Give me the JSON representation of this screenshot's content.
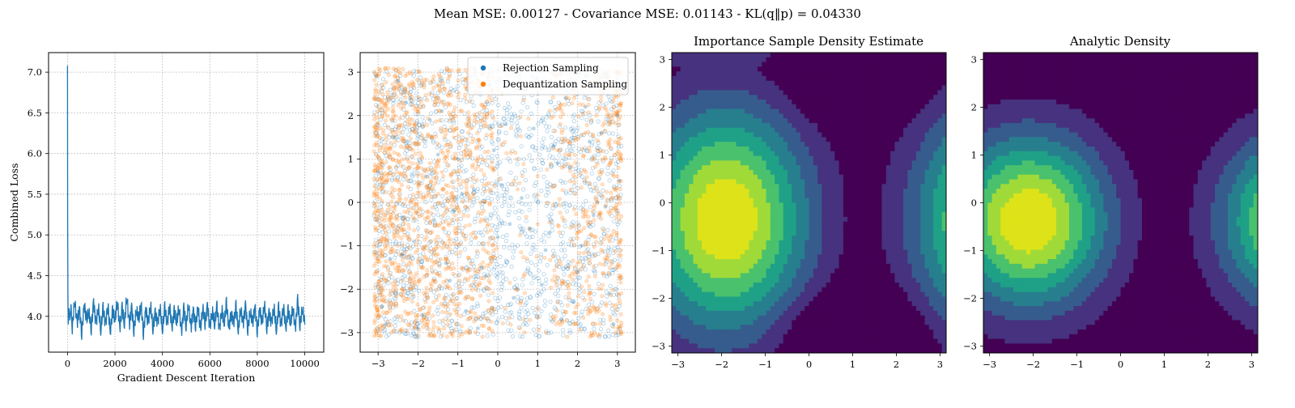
{
  "suptitle": "Mean MSE: 0.00127 - Covariance MSE: 0.01143 - KL(q‖p) = 0.04330",
  "chart_data": [
    {
      "type": "line",
      "title": "",
      "xlabel": "Gradient Descent Iteration",
      "ylabel": "Combined Loss",
      "xlim": [
        -800,
        10800
      ],
      "ylim": [
        3.56,
        7.24
      ],
      "xticks": [
        0,
        2000,
        4000,
        6000,
        8000,
        10000
      ],
      "xtick_labels": [
        "0",
        "2000",
        "4000",
        "6000",
        "8000",
        "10000"
      ],
      "yticks": [
        4.0,
        4.5,
        5.0,
        5.5,
        6.0,
        6.5,
        7.0
      ],
      "ytick_labels": [
        "4.0",
        "4.5",
        "5.0",
        "5.5",
        "6.0",
        "6.5",
        "7.0"
      ],
      "grid": true,
      "color": "#1f77b4",
      "series": [
        {
          "x": [
            0,
            5,
            15,
            30,
            60,
            100,
            150,
            200,
            300,
            400,
            500,
            600,
            700,
            800,
            900,
            1000,
            1100,
            1200,
            1300,
            1400,
            1500,
            1600,
            1700,
            1800,
            1900,
            2000,
            2100,
            2200,
            2300,
            2400,
            2500,
            2600,
            2700,
            2800,
            2900,
            3000,
            3100,
            3200,
            3300,
            3400,
            3500,
            3600,
            3700,
            3800,
            3900,
            4000,
            4100,
            4200,
            4300,
            4400,
            4500,
            4600,
            4700,
            4800,
            4900,
            5000,
            5100,
            5200,
            5300,
            5400,
            5500,
            5600,
            5700,
            5800,
            5900,
            6000,
            6100,
            6200,
            6300,
            6400,
            6500,
            6600,
            6700,
            6800,
            6900,
            7000,
            7100,
            7200,
            7300,
            7400,
            7500,
            7600,
            7700,
            7800,
            7900,
            8000,
            8100,
            8200,
            8300,
            8400,
            8500,
            8600,
            8700,
            8800,
            8900,
            9000,
            9100,
            9200,
            9300,
            9400,
            9500,
            9600,
            9700,
            9800,
            9900,
            10000
          ],
          "y": [
            7.08,
            5.2,
            4.3,
            3.9,
            4.1,
            3.95,
            4.15,
            3.85,
            4.2,
            3.9,
            4.1,
            3.8,
            4.15,
            3.95,
            4.05,
            3.85,
            4.18,
            3.9,
            4.12,
            3.82,
            4.1,
            3.9,
            4.15,
            3.8,
            4.05,
            3.95,
            4.2,
            3.85,
            4.1,
            3.9,
            4.26,
            3.88,
            4.12,
            3.83,
            4.08,
            3.95,
            4.15,
            3.8,
            4.1,
            3.9,
            4.14,
            3.85,
            4.05,
            3.92,
            4.12,
            3.82,
            4.1,
            3.9,
            4.15,
            3.86,
            4.05,
            3.92,
            4.12,
            3.8,
            4.1,
            3.88,
            4.15,
            3.84,
            4.08,
            3.9,
            4.12,
            3.82,
            4.1,
            3.92,
            4.14,
            3.85,
            4.06,
            3.9,
            4.12,
            3.83,
            4.1,
            3.9,
            4.15,
            3.85,
            4.05,
            3.92,
            4.12,
            3.82,
            4.1,
            3.9,
            4.14,
            3.84,
            4.06,
            3.9,
            4.12,
            3.83,
            4.1,
            3.9,
            4.15,
            3.86,
            4.05,
            3.92,
            4.12,
            3.82,
            4.1,
            3.88,
            4.14,
            3.85,
            4.06,
            3.9,
            4.12,
            3.84,
            4.2,
            3.88,
            4.1,
            3.9
          ]
        }
      ]
    },
    {
      "type": "scatter",
      "title": "",
      "xlim": [
        -3.45,
        3.45
      ],
      "ylim": [
        -3.45,
        3.45
      ],
      "xticks": [
        -3,
        -2,
        -1,
        0,
        1,
        2,
        3
      ],
      "xtick_labels": [
        "−3",
        "−2",
        "−1",
        "0",
        "1",
        "2",
        "3"
      ],
      "yticks": [
        -3,
        -2,
        -1,
        0,
        1,
        2,
        3
      ],
      "ytick_labels": [
        "−3",
        "−2",
        "−1",
        "0",
        "1",
        "2",
        "3"
      ],
      "grid": true,
      "legend_position": "top-right",
      "series": [
        {
          "name": "Rejection Sampling",
          "color": "#1f77b4",
          "alpha": 0.3,
          "x": [
            -3.05,
            -2.8,
            -2.6,
            -2.4,
            -2.2,
            -2.0,
            -1.8,
            -1.6,
            -1.4,
            -1.2,
            -1.0,
            -0.8,
            -0.6,
            -0.4,
            -0.2,
            0.0,
            0.2,
            0.4,
            0.6,
            0.8,
            1.0,
            1.2,
            1.4,
            1.6,
            1.8,
            2.0,
            2.2,
            2.4,
            2.6,
            2.8,
            3.05,
            -2.9,
            -2.5,
            -2.1,
            -1.7,
            -1.3,
            -0.9,
            -0.5,
            -0.1,
            0.3,
            0.7,
            1.1,
            1.5,
            1.9,
            2.3,
            2.7,
            3.0,
            -3.0,
            -2.7,
            -2.3,
            -1.9,
            -1.5,
            -1.1,
            -0.7,
            -0.3,
            0.1,
            0.5,
            0.9,
            1.3,
            1.7,
            2.1,
            2.5,
            2.9
          ],
          "y": [
            2.9,
            -2.8,
            1.5,
            -1.2,
            2.4,
            -2.9,
            0.6,
            -0.4,
            2.1,
            -1.8,
            1.0,
            -2.5,
            0.3,
            -1.5,
            2.7,
            -0.8,
            1.8,
            -2.2,
            0.1,
            -0.6,
            2.5,
            -1.1,
            1.3,
            -2.7,
            0.8,
            -1.6,
            2.2,
            -0.3,
            1.6,
            -2.1,
            0.5,
            -2.4,
            2.8,
            -0.9,
            1.9,
            -1.4,
            0.2,
            -2.9,
            1.2,
            -0.5,
            2.6,
            -1.9,
            0.9,
            -2.3,
            1.4,
            -0.1,
            2.0,
            0.7,
            -1.3,
            2.3,
            -2.6,
            1.1,
            -0.2,
            2.9,
            -1.7,
            0.4,
            -2.0,
            1.7,
            -0.7,
            2.4,
            -1.0,
            0.0,
            -2.8
          ]
        },
        {
          "name": "Dequantization Sampling",
          "color": "#ff7f0e",
          "alpha": 0.3,
          "x": [
            -3.1,
            -2.9,
            -2.7,
            -2.5,
            -2.3,
            -2.1,
            -1.9,
            -1.7,
            -1.5,
            -1.3,
            -1.1,
            -0.9,
            -0.7,
            -2.8,
            -2.4,
            -2.0,
            -1.6,
            -1.2,
            -2.6,
            -2.2,
            -1.8,
            -1.4,
            -3.0,
            -2.5,
            -2.0,
            -1.5,
            0.5,
            1.0,
            1.5,
            2.0,
            2.5,
            2.8,
            3.0,
            2.6,
            2.2,
            1.8,
            2.9,
            2.4,
            3.05,
            2.7
          ],
          "y": [
            0.2,
            -0.8,
            1.1,
            -1.5,
            0.6,
            1.8,
            -0.3,
            0.9,
            -1.2,
            0.4,
            1.5,
            -0.7,
            0.1,
            2.2,
            -2.0,
            0.8,
            -1.8,
            1.9,
            -0.1,
            1.3,
            -1.0,
            0.7,
            -2.5,
            2.6,
            -2.6,
            2.4,
            0.3,
            -0.5,
            1.2,
            -1.4,
            0.0,
            -0.9,
            0.6,
            -2.0,
            1.6,
            -1.7,
            2.0,
            -2.4,
            -0.4,
            1.0
          ]
        }
      ]
    },
    {
      "type": "heatmap",
      "title": "Importance Sample Density Estimate",
      "xlim": [
        -3.14159,
        3.14159
      ],
      "ylim": [
        -3.14159,
        3.14159
      ],
      "xticks": [
        -3,
        -2,
        -1,
        0,
        1,
        2,
        3
      ],
      "xtick_labels": [
        "−3",
        "−2",
        "−1",
        "0",
        "1",
        "2",
        "3"
      ],
      "yticks": [
        -3,
        -2,
        -1,
        0,
        1,
        2,
        3
      ],
      "ytick_labels": [
        "−3",
        "−2",
        "−1",
        "0",
        "1",
        "2",
        "3"
      ],
      "colormap": [
        "#440154",
        "#46327e",
        "#365c8d",
        "#277f8e",
        "#1fa187",
        "#4ac16d",
        "#a0da39",
        "#dde318"
      ],
      "peak": [
        -2.1,
        -0.4
      ],
      "kind": "estimate"
    },
    {
      "type": "heatmap",
      "title": "Analytic Density",
      "xlim": [
        -3.14159,
        3.14159
      ],
      "ylim": [
        -3.14159,
        3.14159
      ],
      "xticks": [
        -3,
        -2,
        -1,
        0,
        1,
        2,
        3
      ],
      "xtick_labels": [
        "−3",
        "−2",
        "−1",
        "0",
        "1",
        "2",
        "3"
      ],
      "yticks": [
        -3,
        -2,
        -1,
        0,
        1,
        2,
        3
      ],
      "ytick_labels": [
        "−3",
        "−2",
        "−1",
        "0",
        "1",
        "2",
        "3"
      ],
      "colormap": [
        "#440154",
        "#46327e",
        "#365c8d",
        "#277f8e",
        "#1fa187",
        "#4ac16d",
        "#a0da39",
        "#dde318"
      ],
      "peak": [
        -2.1,
        -0.35
      ],
      "kind": "analytic"
    }
  ]
}
